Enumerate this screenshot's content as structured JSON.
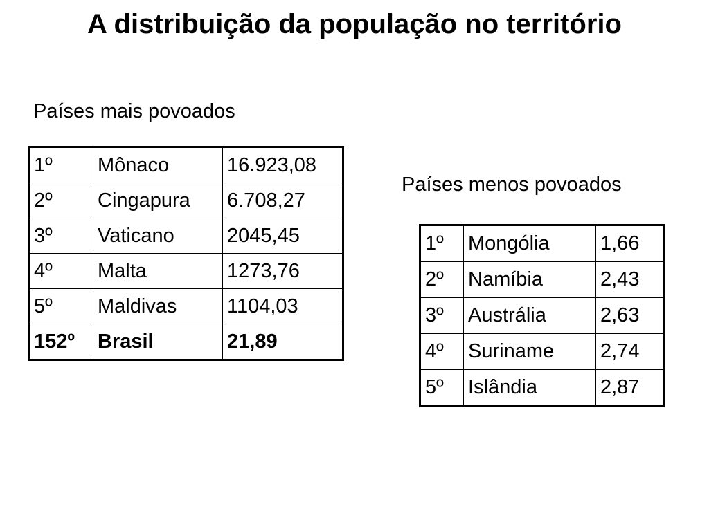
{
  "title": "A distribuição da população no território",
  "most_populated": {
    "caption": "Países mais povoados",
    "rows": [
      {
        "rank": "1º",
        "country": "Mônaco",
        "value": "16.923,08"
      },
      {
        "rank": "2º",
        "country": "Cingapura",
        "value": "6.708,27"
      },
      {
        "rank": "3º",
        "country": "Vaticano",
        "value": "2045,45"
      },
      {
        "rank": "4º",
        "country": "Malta",
        "value": "1273,76"
      },
      {
        "rank": "5º",
        "country": "Maldivas",
        "value": "1104,03"
      },
      {
        "rank": "152º",
        "country": "Brasil",
        "value": "21,89"
      }
    ]
  },
  "least_populated": {
    "caption": "Países menos povoados",
    "rows": [
      {
        "rank": "1º",
        "country": "Mongólia",
        "value": "1,66"
      },
      {
        "rank": "2º",
        "country": "Namíbia",
        "value": "2,43"
      },
      {
        "rank": "3º",
        "country": "Austrália",
        "value": "2,63"
      },
      {
        "rank": "4º",
        "country": "Suriname",
        "value": "2,74"
      },
      {
        "rank": "5º",
        "country": "Islândia",
        "value": "2,87"
      }
    ]
  }
}
